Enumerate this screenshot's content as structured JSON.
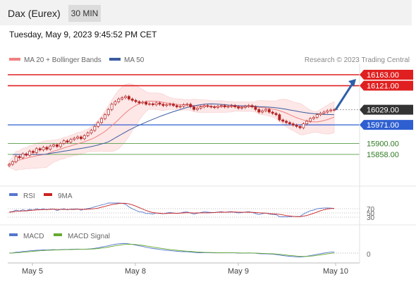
{
  "header": {
    "title": "Dax (Eurex)",
    "timeframe": "30 MIN",
    "timestamp": "Tuesday, May 9, 2023 9:45:52 PM CET"
  },
  "legend": {
    "ma20_label": "MA 20 + Bollinger Bands",
    "ma20_color": "#f08080",
    "ma50_label": "MA 50",
    "ma50_color": "#3a5ba0",
    "credit": "Research © 2023 Trading Central"
  },
  "colors": {
    "resistance": "#e02020",
    "support_line": "#2e5fd0",
    "support_label": "#2e5fd0",
    "target": "#69a85a",
    "price_box": "#333333",
    "candle": "#b22222",
    "rsi": "#5577cc",
    "rsi_ma": "#cc2222",
    "macd": "#5577cc",
    "macd_signal": "#66aa33"
  },
  "chart_data": {
    "type": "candlestick",
    "instrument": "Dax (Eurex)",
    "interval": "30 MIN",
    "x_ticks": [
      "May 5",
      "May 8",
      "May 9",
      "May 10"
    ],
    "levels": [
      {
        "value": 16163.0,
        "label": "16163.00",
        "kind": "resistance"
      },
      {
        "value": 16121.0,
        "label": "16121.00",
        "kind": "resistance"
      },
      {
        "value": 16029.0,
        "label": "16029.00",
        "kind": "last"
      },
      {
        "value": 15971.0,
        "label": "15971.00",
        "kind": "pivot"
      },
      {
        "value": 15900.0,
        "label": "15900.00",
        "kind": "support"
      },
      {
        "value": 15858.0,
        "label": "15858.00",
        "kind": "support"
      }
    ],
    "close": [
      15820,
      15830,
      15850,
      15845,
      15860,
      15855,
      15870,
      15865,
      15880,
      15875,
      15885,
      15878,
      15890,
      15895,
      15888,
      15900,
      15910,
      15905,
      15915,
      15920,
      15925,
      15918,
      15930,
      15940,
      15950,
      15965,
      15980,
      15995,
      16010,
      16030,
      16050,
      16060,
      16070,
      16075,
      16080,
      16070,
      16065,
      16060,
      16055,
      16058,
      16050,
      16052,
      16048,
      16055,
      16050,
      16045,
      16048,
      16050,
      16045,
      16040,
      16042,
      16048,
      16050,
      16040,
      16030,
      16035,
      16040,
      16045,
      16042,
      16040,
      16038,
      16042,
      16045,
      16040,
      16042,
      16045,
      16040,
      16035,
      16038,
      16042,
      16045,
      16040,
      16030,
      16020,
      16025,
      16030,
      16020,
      16015,
      16010,
      15990,
      15985,
      15980,
      15975,
      15970,
      15965,
      15960,
      15975,
      15985,
      15995,
      16000,
      16010,
      16015,
      16020,
      16025,
      16028,
      16029
    ],
    "rsi_panel": {
      "label": "RSI",
      "ma_label": "9MA",
      "levels": [
        "70",
        "50",
        "30"
      ]
    },
    "macd_panel": {
      "label": "MACD",
      "signal_label": "MACD Signal",
      "zero_label": "0"
    }
  }
}
